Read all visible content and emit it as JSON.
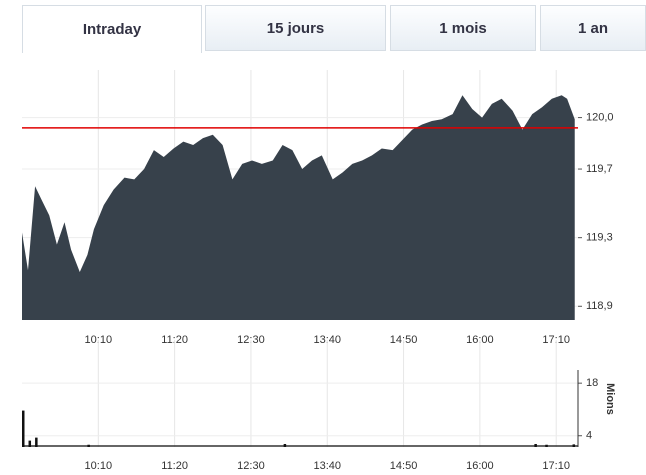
{
  "tabs": [
    "Intraday",
    "15 jours",
    "1 mois",
    "1 an"
  ],
  "active_tab": 0,
  "chart_data": [
    {
      "type": "area",
      "color": "#37414b",
      "x": [
        540,
        545.5,
        552,
        558,
        565,
        572,
        579,
        585,
        593,
        600,
        606,
        615,
        624,
        634,
        643,
        652,
        661,
        670,
        679,
        688,
        697,
        706,
        715,
        724,
        733,
        742,
        751,
        760,
        770,
        779,
        788,
        797,
        806,
        815,
        825,
        834,
        843,
        852,
        861,
        870,
        880,
        889,
        898,
        907,
        916,
        925,
        935,
        944,
        953,
        962,
        971,
        980,
        990,
        999,
        1008,
        1017,
        1026,
        1035,
        1040,
        1047
      ],
      "values": [
        119.33,
        119.11,
        119.6,
        119.52,
        119.43,
        119.26,
        119.39,
        119.23,
        119.1,
        119.2,
        119.35,
        119.49,
        119.58,
        119.65,
        119.64,
        119.7,
        119.81,
        119.77,
        119.82,
        119.86,
        119.84,
        119.88,
        119.9,
        119.84,
        119.64,
        119.73,
        119.75,
        119.73,
        119.75,
        119.84,
        119.81,
        119.7,
        119.75,
        119.78,
        119.64,
        119.68,
        119.73,
        119.75,
        119.78,
        119.82,
        119.81,
        119.87,
        119.93,
        119.96,
        119.98,
        119.99,
        120.02,
        120.13,
        120.05,
        120.0,
        120.08,
        120.11,
        120.04,
        119.93,
        120.02,
        120.06,
        120.11,
        120.13,
        120.11,
        119.99
      ],
      "reference_line": 119.94,
      "reference_color": "#e00000",
      "xlim": [
        540,
        1050
      ],
      "xticks": [
        {
          "value": 610,
          "label": "10:10"
        },
        {
          "value": 680,
          "label": "11:20"
        },
        {
          "value": 750,
          "label": "12:30"
        },
        {
          "value": 820,
          "label": "13:40"
        },
        {
          "value": 890,
          "label": "14:50"
        },
        {
          "value": 960,
          "label": "16:00"
        },
        {
          "value": 1030,
          "label": "17:10"
        }
      ],
      "ylim": [
        118.82,
        120.19
      ],
      "yticks": [
        {
          "value": 118.9,
          "label": "118,9"
        },
        {
          "value": 119.3,
          "label": "119,3"
        },
        {
          "value": 119.7,
          "label": "119,7"
        },
        {
          "value": 120.0,
          "label": "120,0"
        }
      ],
      "grid": true
    },
    {
      "type": "bar",
      "color": "#111111",
      "y_label": "Mions",
      "x": [
        540,
        546,
        552,
        600,
        780,
        1010,
        1020,
        1045
      ],
      "values": [
        10.7,
        2.7,
        3.5,
        1.6,
        1.8,
        1.8,
        1.6,
        1.7
      ],
      "xlim": [
        540,
        1050
      ],
      "xticks": [
        {
          "value": 610,
          "label": "10:10"
        },
        {
          "value": 680,
          "label": "11:20"
        },
        {
          "value": 750,
          "label": "12:30"
        },
        {
          "value": 820,
          "label": "13:40"
        },
        {
          "value": 890,
          "label": "14:50"
        },
        {
          "value": 960,
          "label": "16:00"
        },
        {
          "value": 1030,
          "label": "17:10"
        }
      ],
      "ylim": [
        1,
        25.5
      ],
      "yticks": [
        4,
        18
      ],
      "grid": true
    }
  ]
}
